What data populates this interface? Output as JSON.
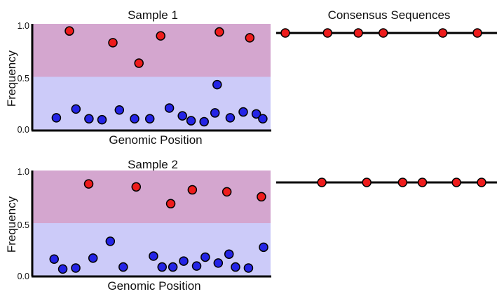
{
  "colors": {
    "high_band": "#d4a6cf",
    "low_band": "#cccbf9",
    "high_point": "#ee1c1c",
    "low_point": "#2424e6",
    "axis": "#000000"
  },
  "chart_data": [
    {
      "id": "sample1",
      "type": "scatter",
      "title": "Sample 1",
      "xlabel": "Genomic Position",
      "ylabel": "Frequency",
      "y_ticks": [
        "1.0",
        "0.5",
        "0.0"
      ],
      "ylim": [
        0,
        1
      ],
      "xlim": [
        0,
        1
      ],
      "bands": [
        {
          "from": 0.5,
          "to": 1.0,
          "color": "#d4a6cf"
        },
        {
          "from": 0.0,
          "to": 0.5,
          "color": "#cccbf9"
        }
      ],
      "points": [
        {
          "x": 0.04,
          "y": 0.08,
          "group": "low"
        },
        {
          "x": 0.1,
          "y": 0.97,
          "group": "high"
        },
        {
          "x": 0.13,
          "y": 0.17,
          "group": "low"
        },
        {
          "x": 0.19,
          "y": 0.07,
          "group": "low"
        },
        {
          "x": 0.25,
          "y": 0.06,
          "group": "low"
        },
        {
          "x": 0.3,
          "y": 0.85,
          "group": "high"
        },
        {
          "x": 0.33,
          "y": 0.16,
          "group": "low"
        },
        {
          "x": 0.4,
          "y": 0.07,
          "group": "low"
        },
        {
          "x": 0.42,
          "y": 0.64,
          "group": "high"
        },
        {
          "x": 0.47,
          "y": 0.07,
          "group": "low"
        },
        {
          "x": 0.52,
          "y": 0.92,
          "group": "high"
        },
        {
          "x": 0.56,
          "y": 0.18,
          "group": "low"
        },
        {
          "x": 0.62,
          "y": 0.1,
          "group": "low"
        },
        {
          "x": 0.66,
          "y": 0.05,
          "group": "low"
        },
        {
          "x": 0.72,
          "y": 0.04,
          "group": "low"
        },
        {
          "x": 0.77,
          "y": 0.13,
          "group": "low"
        },
        {
          "x": 0.78,
          "y": 0.42,
          "group": "low"
        },
        {
          "x": 0.79,
          "y": 0.96,
          "group": "high"
        },
        {
          "x": 0.84,
          "y": 0.08,
          "group": "low"
        },
        {
          "x": 0.9,
          "y": 0.14,
          "group": "low"
        },
        {
          "x": 0.93,
          "y": 0.9,
          "group": "high"
        },
        {
          "x": 0.96,
          "y": 0.12,
          "group": "low"
        },
        {
          "x": 0.99,
          "y": 0.07,
          "group": "low"
        }
      ]
    },
    {
      "id": "sample2",
      "type": "scatter",
      "title": "Sample 2",
      "xlabel": "Genomic Position",
      "ylabel": "Frequency",
      "y_ticks": [
        "1.0",
        "0.5",
        "0.0"
      ],
      "ylim": [
        0,
        1
      ],
      "xlim": [
        0,
        1
      ],
      "bands": [
        {
          "from": 0.5,
          "to": 1.0,
          "color": "#d4a6cf"
        },
        {
          "from": 0.0,
          "to": 0.5,
          "color": "#cccbf9"
        }
      ],
      "points": [
        {
          "x": 0.03,
          "y": 0.14,
          "group": "low"
        },
        {
          "x": 0.07,
          "y": 0.04,
          "group": "low"
        },
        {
          "x": 0.13,
          "y": 0.05,
          "group": "low"
        },
        {
          "x": 0.19,
          "y": 0.9,
          "group": "high"
        },
        {
          "x": 0.21,
          "y": 0.15,
          "group": "low"
        },
        {
          "x": 0.29,
          "y": 0.32,
          "group": "low"
        },
        {
          "x": 0.35,
          "y": 0.06,
          "group": "low"
        },
        {
          "x": 0.41,
          "y": 0.87,
          "group": "high"
        },
        {
          "x": 0.49,
          "y": 0.17,
          "group": "low"
        },
        {
          "x": 0.53,
          "y": 0.06,
          "group": "low"
        },
        {
          "x": 0.57,
          "y": 0.7,
          "group": "high"
        },
        {
          "x": 0.58,
          "y": 0.06,
          "group": "low"
        },
        {
          "x": 0.63,
          "y": 0.12,
          "group": "low"
        },
        {
          "x": 0.67,
          "y": 0.84,
          "group": "high"
        },
        {
          "x": 0.69,
          "y": 0.07,
          "group": "low"
        },
        {
          "x": 0.73,
          "y": 0.16,
          "group": "low"
        },
        {
          "x": 0.79,
          "y": 0.1,
          "group": "low"
        },
        {
          "x": 0.83,
          "y": 0.82,
          "group": "high"
        },
        {
          "x": 0.84,
          "y": 0.19,
          "group": "low"
        },
        {
          "x": 0.87,
          "y": 0.06,
          "group": "low"
        },
        {
          "x": 0.93,
          "y": 0.05,
          "group": "low"
        },
        {
          "x": 0.99,
          "y": 0.77,
          "group": "high"
        },
        {
          "x": 1.0,
          "y": 0.26,
          "group": "low"
        }
      ]
    },
    {
      "id": "consensus1",
      "type": "line",
      "title": "Consensus Sequences",
      "points": [
        0.0,
        0.22,
        0.38,
        0.51,
        0.82,
        1.0
      ]
    },
    {
      "id": "consensus2",
      "type": "line",
      "title": "",
      "points": [
        0.11,
        0.36,
        0.56,
        0.67,
        0.86,
        1.0
      ]
    }
  ]
}
